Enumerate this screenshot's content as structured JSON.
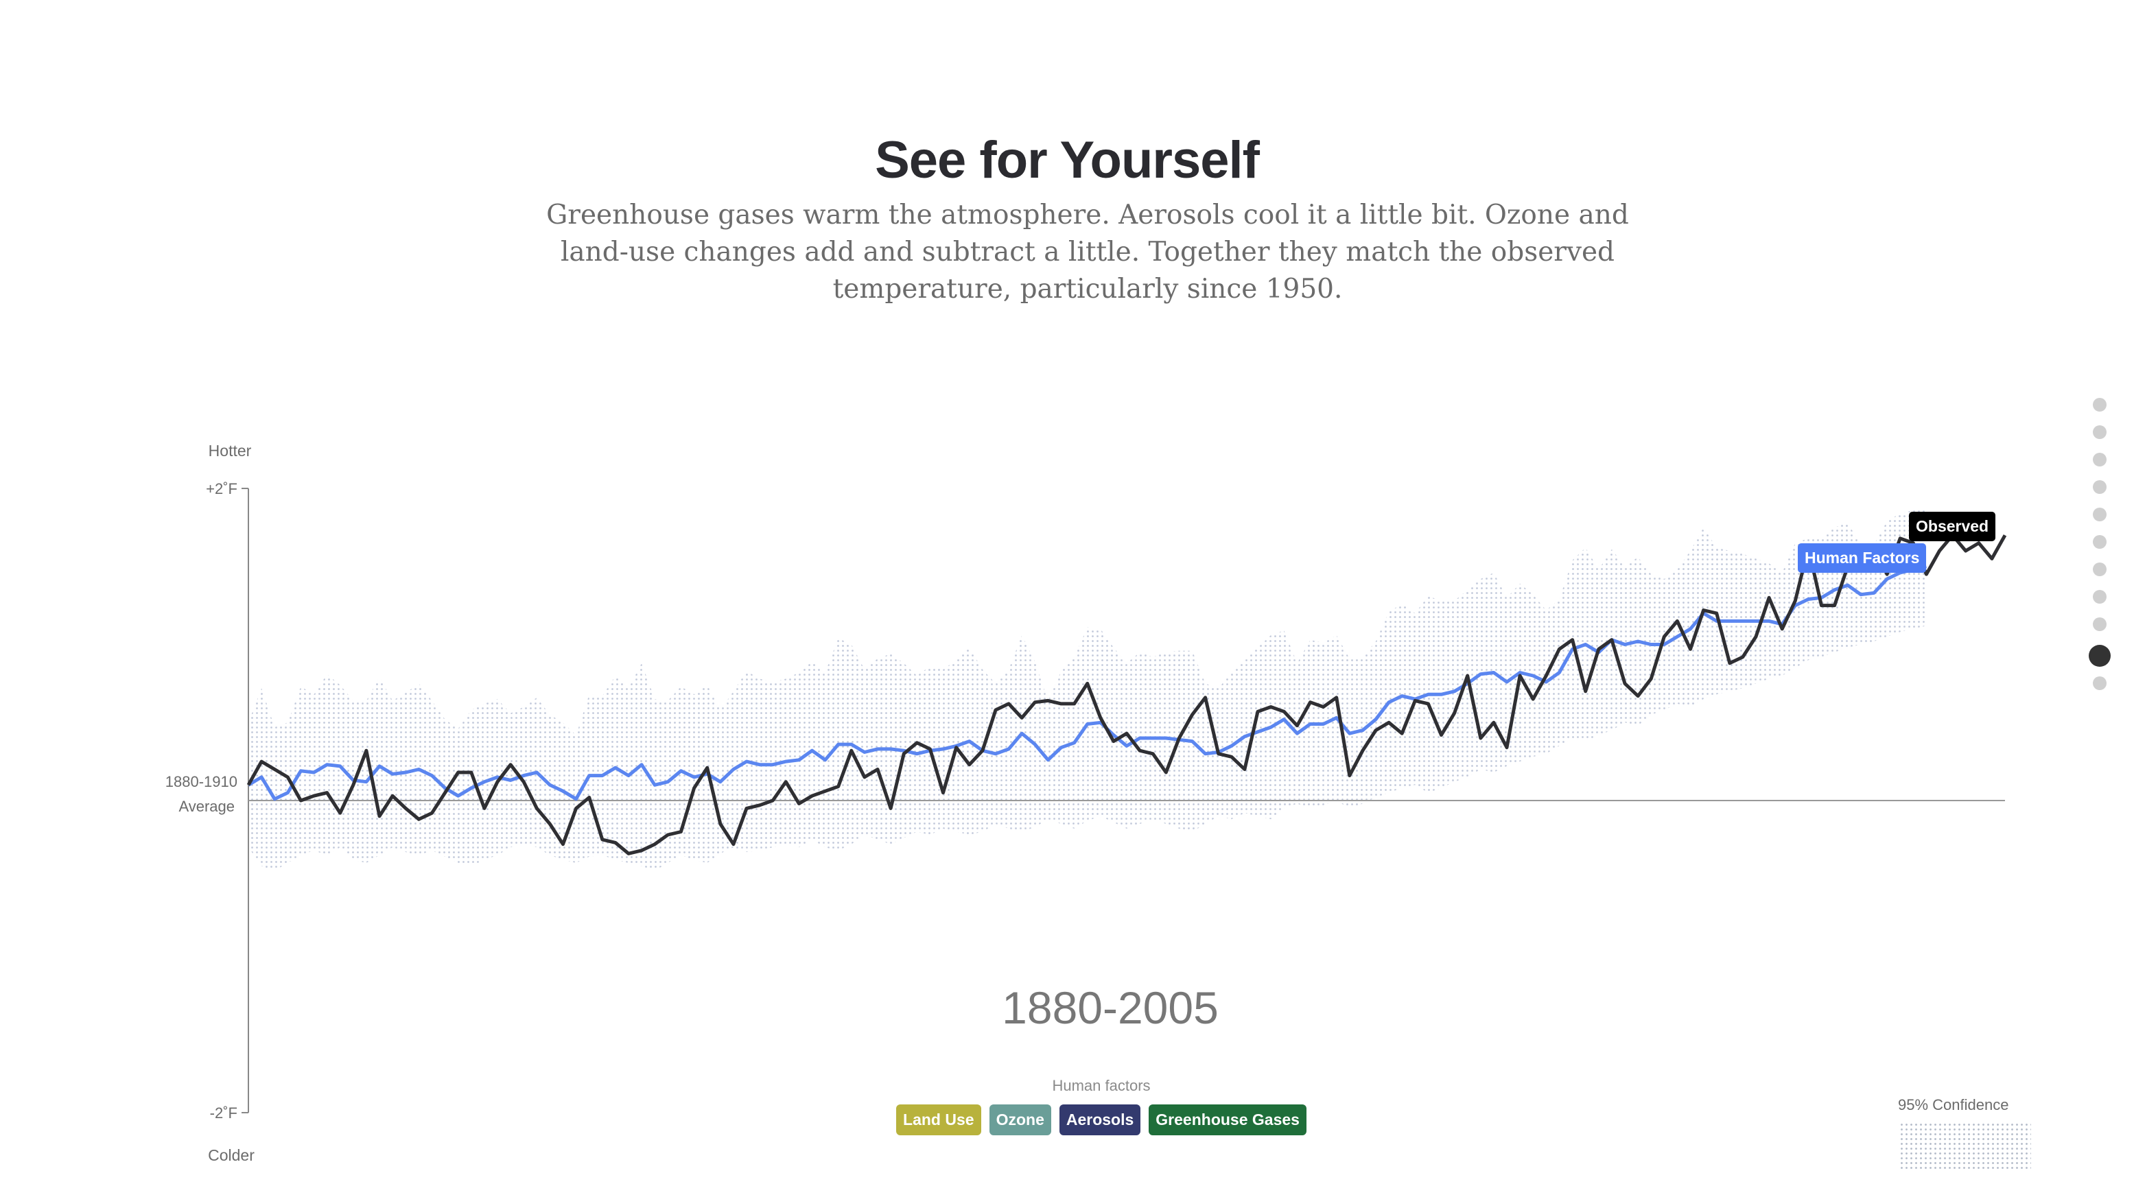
{
  "header": {
    "title": "See for Yourself",
    "subtitle": "Greenhouse gases warm the atmosphere. Aerosols cool it a little bit. Ozone and land-use changes add and subtract a little. Together they match the observed temperature, particularly since 1950."
  },
  "chart_data": {
    "type": "line",
    "x_range": [
      1880,
      2014
    ],
    "ylim": [
      -2,
      2
    ],
    "ylabel_top": "Hotter",
    "ylabel_bottom": "Colder",
    "yticks": [
      {
        "value": 2,
        "label": "+2˚F"
      },
      {
        "value": 0,
        "label": "1880-1910",
        "label2": "Average"
      },
      {
        "value": -2,
        "label": "-2˚F"
      }
    ],
    "period_label": "1880-2005",
    "series": [
      {
        "name": "Observed",
        "color": "#2f2f33",
        "x_start": 1880,
        "values": [
          0.1,
          0.25,
          0.2,
          0.15,
          0.0,
          0.03,
          0.05,
          -0.08,
          0.1,
          0.32,
          -0.1,
          0.03,
          -0.05,
          -0.12,
          -0.08,
          0.05,
          0.18,
          0.18,
          -0.05,
          0.12,
          0.23,
          0.12,
          -0.05,
          -0.15,
          -0.28,
          -0.05,
          0.02,
          -0.25,
          -0.27,
          -0.34,
          -0.32,
          -0.28,
          -0.22,
          -0.2,
          0.08,
          0.21,
          -0.15,
          -0.28,
          -0.05,
          -0.03,
          0.0,
          0.12,
          -0.02,
          0.03,
          0.06,
          0.09,
          0.32,
          0.15,
          0.2,
          -0.05,
          0.3,
          0.37,
          0.33,
          0.05,
          0.34,
          0.23,
          0.32,
          0.58,
          0.62,
          0.53,
          0.63,
          0.64,
          0.62,
          0.62,
          0.75,
          0.53,
          0.38,
          0.43,
          0.32,
          0.3,
          0.18,
          0.4,
          0.55,
          0.66,
          0.3,
          0.28,
          0.2,
          0.57,
          0.6,
          0.57,
          0.48,
          0.63,
          0.6,
          0.66,
          0.16,
          0.32,
          0.45,
          0.5,
          0.43,
          0.64,
          0.62,
          0.42,
          0.56,
          0.8,
          0.4,
          0.5,
          0.34,
          0.8,
          0.65,
          0.8,
          0.97,
          1.03,
          0.7,
          0.97,
          1.03,
          0.75,
          0.67,
          0.78,
          1.05,
          1.15,
          0.97,
          1.22,
          1.2,
          0.88,
          0.92,
          1.05,
          1.3,
          1.1,
          1.28,
          1.62,
          1.25,
          1.25,
          1.5,
          1.62,
          1.62,
          1.45,
          1.68,
          1.65,
          1.45,
          1.6,
          1.7,
          1.6,
          1.65,
          1.55,
          1.7
        ]
      },
      {
        "name": "Human Factors",
        "color": "#5b86f0",
        "x_start": 1880,
        "values": [
          0.1,
          0.15,
          0.01,
          0.05,
          0.19,
          0.18,
          0.23,
          0.22,
          0.13,
          0.12,
          0.22,
          0.17,
          0.18,
          0.2,
          0.16,
          0.08,
          0.03,
          0.08,
          0.12,
          0.15,
          0.13,
          0.16,
          0.18,
          0.1,
          0.06,
          0.01,
          0.16,
          0.16,
          0.21,
          0.16,
          0.23,
          0.1,
          0.12,
          0.19,
          0.15,
          0.17,
          0.12,
          0.2,
          0.25,
          0.23,
          0.23,
          0.25,
          0.26,
          0.32,
          0.26,
          0.36,
          0.36,
          0.31,
          0.33,
          0.33,
          0.32,
          0.3,
          0.32,
          0.33,
          0.35,
          0.38,
          0.32,
          0.3,
          0.33,
          0.43,
          0.36,
          0.26,
          0.34,
          0.37,
          0.49,
          0.5,
          0.42,
          0.35,
          0.4,
          0.4,
          0.4,
          0.39,
          0.38,
          0.3,
          0.31,
          0.35,
          0.41,
          0.44,
          0.47,
          0.52,
          0.43,
          0.49,
          0.49,
          0.53,
          0.43,
          0.45,
          0.52,
          0.63,
          0.67,
          0.65,
          0.68,
          0.68,
          0.7,
          0.75,
          0.81,
          0.82,
          0.76,
          0.82,
          0.8,
          0.76,
          0.82,
          0.97,
          1.0,
          0.95,
          1.03,
          1.0,
          1.02,
          1.0,
          1.0,
          1.05,
          1.1,
          1.2,
          1.15,
          1.15,
          1.15,
          1.15,
          1.15,
          1.13,
          1.25,
          1.29,
          1.3,
          1.35,
          1.38,
          1.32,
          1.33,
          1.42,
          1.46,
          1.48,
          1.5
        ]
      }
    ],
    "confidence_band": {
      "x_start": 1880,
      "lower": [
        -0.3,
        -0.42,
        -0.45,
        -0.4,
        -0.35,
        -0.32,
        -0.35,
        -0.3,
        -0.38,
        -0.4,
        -0.35,
        -0.3,
        -0.33,
        -0.35,
        -0.32,
        -0.36,
        -0.4,
        -0.42,
        -0.38,
        -0.35,
        -0.3,
        -0.28,
        -0.3,
        -0.35,
        -0.38,
        -0.4,
        -0.36,
        -0.35,
        -0.38,
        -0.4,
        -0.42,
        -0.45,
        -0.4,
        -0.35,
        -0.38,
        -0.4,
        -0.34,
        -0.3,
        -0.33,
        -0.32,
        -0.3,
        -0.28,
        -0.3,
        -0.25,
        -0.3,
        -0.32,
        -0.28,
        -0.22,
        -0.25,
        -0.28,
        -0.24,
        -0.2,
        -0.22,
        -0.18,
        -0.2,
        -0.22,
        -0.2,
        -0.15,
        -0.18,
        -0.2,
        -0.17,
        -0.12,
        -0.15,
        -0.18,
        -0.13,
        -0.1,
        -0.14,
        -0.18,
        -0.15,
        -0.12,
        -0.15,
        -0.18,
        -0.2,
        -0.15,
        -0.1,
        -0.12,
        -0.08,
        -0.1,
        -0.12,
        -0.05,
        -0.02,
        -0.05,
        -0.03,
        0.0,
        -0.05,
        -0.02,
        0.02,
        0.05,
        0.08,
        0.1,
        0.05,
        0.08,
        0.12,
        0.15,
        0.2,
        0.18,
        0.22,
        0.25,
        0.28,
        0.3,
        0.35,
        0.4,
        0.38,
        0.42,
        0.45,
        0.5,
        0.48,
        0.55,
        0.58,
        0.62,
        0.6,
        0.65,
        0.68,
        0.7,
        0.72,
        0.75,
        0.78,
        0.8,
        0.85,
        0.9,
        0.92,
        0.95,
        0.98,
        1.0,
        1.02,
        1.05,
        1.08,
        1.1,
        1.12
      ]
    },
    "annotations": [
      {
        "text": "Observed",
        "color": "#000000"
      },
      {
        "text": "Human Factors",
        "color": "#4c7cf5"
      }
    ]
  },
  "legend": {
    "title": "Human factors",
    "items": [
      {
        "label": "Land Use",
        "color": "#b8b23c"
      },
      {
        "label": "Ozone",
        "color": "#6a9e98"
      },
      {
        "label": "Aerosols",
        "color": "#333a6e"
      },
      {
        "label": "Greenhouse Gases",
        "color": "#1f6e3a"
      }
    ]
  },
  "confidence": {
    "label": "95% Confidence"
  },
  "nav": {
    "count": 11,
    "active": 9
  }
}
